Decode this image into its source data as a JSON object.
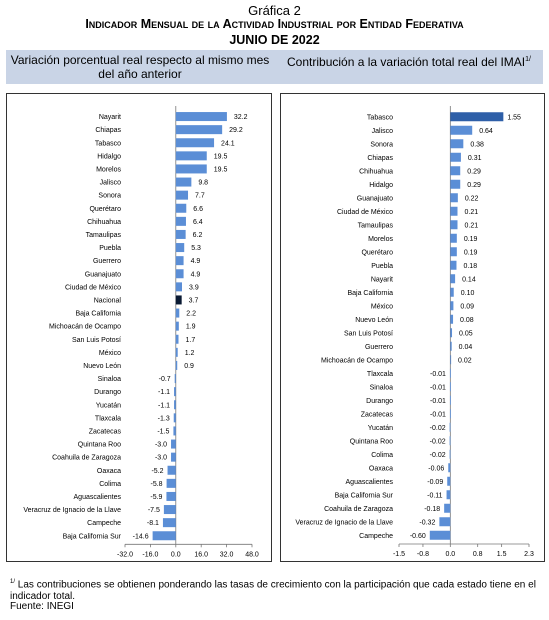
{
  "header": {
    "graph_label": "Gráfica 2",
    "title": "Indicador Mensual de la Actividad Industrial por Entidad Federativa",
    "date": "junio de 2022"
  },
  "subtitles": {
    "left": "Variación porcentual real respecto al mismo mes del año anterior",
    "right": "Contribución a la variación total real del IMAI",
    "right_note": "1/"
  },
  "chart_data": [
    {
      "type": "bar",
      "orientation": "horizontal",
      "categories": [
        "Nayarit",
        "Chiapas",
        "Tabasco",
        "Hidalgo",
        "Morelos",
        "Jalisco",
        "Sonora",
        "Querétaro",
        "Chihuahua",
        "Tamaulipas",
        "Puebla",
        "Guerrero",
        "Guanajuato",
        "Ciudad de México",
        "Nacional",
        "Baja California",
        "Michoacán de Ocampo",
        "San Luis Potosí",
        "México",
        "Nuevo León",
        "Sinaloa",
        "Durango",
        "Yucatán",
        "Tlaxcala",
        "Zacatecas",
        "Quintana Roo",
        "Coahuila de Zaragoza",
        "Oaxaca",
        "Colima",
        "Aguascalientes",
        "Veracruz de Ignacio de la Llave",
        "Campeche",
        "Baja California Sur"
      ],
      "values": [
        32.2,
        29.2,
        24.1,
        19.5,
        19.5,
        9.8,
        7.7,
        6.6,
        6.4,
        6.2,
        5.3,
        4.9,
        4.9,
        3.9,
        3.7,
        2.2,
        1.9,
        1.7,
        1.2,
        0.9,
        -0.7,
        -1.1,
        -1.1,
        -1.3,
        -1.5,
        -3.0,
        -3.0,
        -5.2,
        -5.8,
        -5.9,
        -7.5,
        -8.1,
        -14.6
      ],
      "value_labels": [
        "32.2",
        "29.2",
        "24.1",
        "19.5",
        "19.5",
        "9.8",
        "7.7",
        "6.6",
        "6.4",
        "6.2",
        "5.3",
        "4.9",
        "4.9",
        "3.9",
        "3.7",
        "2.2",
        "1.9",
        "1.7",
        "1.2",
        "0.9",
        "-0.7",
        "-1.1",
        "-1.1",
        "-1.3",
        "-1.5",
        "-3.0",
        "-3.0",
        "-5.2",
        "-5.8",
        "-5.9",
        "-7.5",
        "-8.1",
        "-14.6"
      ],
      "highlight": "Nacional",
      "xlim": [
        -32.0,
        48.0
      ],
      "xticks": [
        -32.0,
        -16.0,
        0.0,
        16.0,
        32.0,
        48.0
      ],
      "xtick_labels": [
        "-32.0",
        "-16.0",
        "0.0",
        "16.0",
        "32.0",
        "48.0"
      ],
      "colors": {
        "bar": "#5b8ed6",
        "highlight": "#0a1a33"
      }
    },
    {
      "type": "bar",
      "orientation": "horizontal",
      "categories": [
        "Tabasco",
        "Jalisco",
        "Sonora",
        "Chiapas",
        "Chihuahua",
        "Hidalgo",
        "Guanajuato",
        "Ciudad de México",
        "Tamaulipas",
        "Morelos",
        "Querétaro",
        "Puebla",
        "Nayarit",
        "Baja California",
        "México",
        "Nuevo León",
        "San Luis Potosí",
        "Guerrero",
        "Michoacán de Ocampo",
        "Tlaxcala",
        "Sinaloa",
        "Durango",
        "Zacatecas",
        "Yucatán",
        "Quintana Roo",
        "Colima",
        "Oaxaca",
        "Aguascalientes",
        "Baja California Sur",
        "Coahuila de Zaragoza",
        "Veracruz de Ignacio de la Llave",
        "Campeche"
      ],
      "values": [
        1.55,
        0.64,
        0.38,
        0.31,
        0.29,
        0.29,
        0.22,
        0.21,
        0.21,
        0.19,
        0.19,
        0.18,
        0.14,
        0.1,
        0.09,
        0.08,
        0.05,
        0.04,
        0.02,
        -0.01,
        -0.01,
        -0.01,
        -0.01,
        -0.02,
        -0.02,
        -0.02,
        -0.06,
        -0.09,
        -0.11,
        -0.18,
        -0.32,
        -0.6
      ],
      "value_labels": [
        "1.55",
        "0.64",
        "0.38",
        "0.31",
        "0.29",
        "0.29",
        "0.22",
        "0.21",
        "0.21",
        "0.19",
        "0.19",
        "0.18",
        "0.14",
        "0.10",
        "0.09",
        "0.08",
        "0.05",
        "0.04",
        "0.02",
        "-0.01",
        "-0.01",
        "-0.01",
        "-0.01",
        "-0.02",
        "-0.02",
        "-0.02",
        "-0.06",
        "-0.09",
        "-0.11",
        "-0.18",
        "-0.32",
        "-0.60"
      ],
      "xlim": [
        -1.5,
        2.3
      ],
      "xticks": [
        -1.5,
        -0.8,
        0.0,
        0.8,
        1.5,
        2.3
      ],
      "xtick_labels": [
        "-1.5",
        "-0.8",
        "0.0",
        "0.8",
        "1.5",
        "2.3"
      ],
      "colors": {
        "bar": "#5b8ed6",
        "top_bar": "#2e5fa8"
      }
    }
  ],
  "footnote": {
    "mark": "1/",
    "text": "Las contribuciones se obtienen ponderando las tasas de crecimiento con la participación que cada estado tiene en el indicador total."
  },
  "source": "Fuente: INEGI"
}
